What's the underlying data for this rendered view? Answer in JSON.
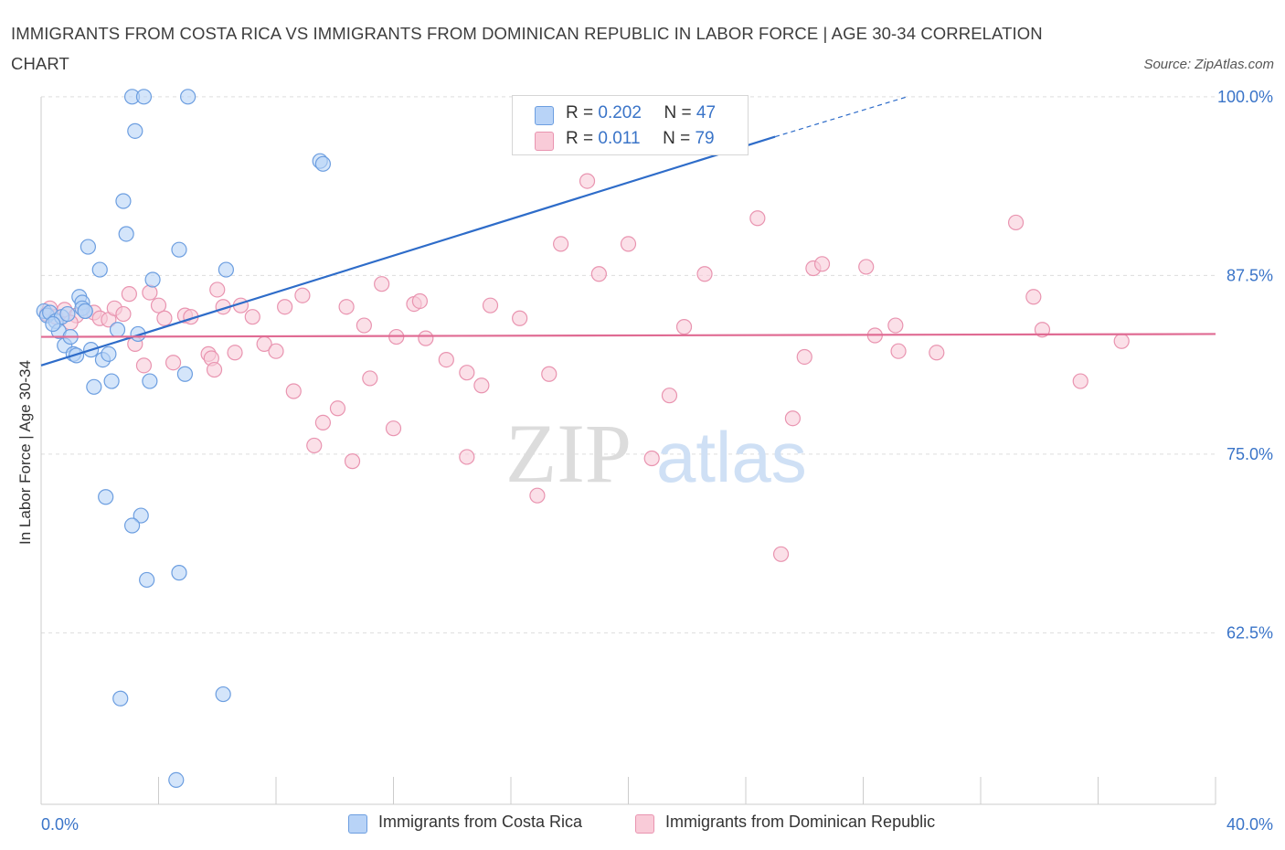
{
  "title": "IMMIGRANTS FROM COSTA RICA VS IMMIGRANTS FROM DOMINICAN REPUBLIC IN LABOR FORCE | AGE 30-34 CORRELATION CHART",
  "source": "Source: ZipAtlas.com",
  "watermark": {
    "zip": "ZIP",
    "atlas": "atlas"
  },
  "legend_top": [
    {
      "r_label": "R =",
      "r_value": "0.202",
      "n_label": "N =",
      "n_value": "47"
    },
    {
      "r_label": "R =",
      "r_value": "0.011",
      "n_label": "N =",
      "n_value": "79"
    }
  ],
  "legend_bottom": [
    "Immigrants from Costa Rica",
    "Immigrants from Dominican Republic"
  ],
  "colors": {
    "blue_fill": "#b8d3f7",
    "blue_stroke": "#6c9ee0",
    "blue_line": "#2e6cc9",
    "pink_fill": "#f9cbd8",
    "pink_stroke": "#e994b0",
    "pink_line": "#e06b93",
    "tick_label": "#3a74c8",
    "grid": "#dddddd"
  },
  "chart_data": {
    "type": "scatter",
    "ylabel": "In Labor Force | Age 30-34",
    "xlim": [
      0,
      40
    ],
    "ylim": [
      50.5,
      100.5
    ],
    "x_tick_labels": [
      {
        "value": 0,
        "label": "0.0%"
      },
      {
        "value": 40,
        "label": "40.0%"
      }
    ],
    "y_tick_labels": [
      {
        "value": 62.5,
        "label": "62.5%"
      },
      {
        "value": 75.0,
        "label": "75.0%"
      },
      {
        "value": 87.5,
        "label": "87.5%"
      },
      {
        "value": 100.0,
        "label": "100.0%"
      }
    ],
    "y_grid": [
      62.5,
      75.0,
      87.5,
      100.0
    ],
    "grid": true,
    "series": [
      {
        "name": "Immigrants from Costa Rica",
        "color": "blue",
        "trend": {
          "x0": 0,
          "y0": 81.2,
          "x1": 25.0,
          "y1": 97.2,
          "dash_to_x": 29.5,
          "dash_to_y": 100.0
        },
        "points": [
          [
            0.1,
            85.0
          ],
          [
            0.2,
            84.7
          ],
          [
            0.3,
            84.9
          ],
          [
            0.5,
            84.3
          ],
          [
            0.6,
            83.6
          ],
          [
            0.7,
            84.6
          ],
          [
            0.8,
            82.6
          ],
          [
            1.0,
            83.2
          ],
          [
            1.1,
            82.0
          ],
          [
            1.3,
            86.0
          ],
          [
            1.4,
            85.6
          ],
          [
            1.4,
            85.2
          ],
          [
            1.5,
            85.0
          ],
          [
            1.6,
            89.5
          ],
          [
            1.7,
            82.3
          ],
          [
            1.8,
            79.7
          ],
          [
            2.0,
            87.9
          ],
          [
            2.1,
            81.6
          ],
          [
            2.3,
            82.0
          ],
          [
            2.4,
            80.1
          ],
          [
            2.6,
            83.7
          ],
          [
            2.8,
            92.7
          ],
          [
            2.9,
            90.4
          ],
          [
            3.1,
            100.0
          ],
          [
            3.2,
            97.6
          ],
          [
            3.3,
            83.4
          ],
          [
            3.5,
            100.0
          ],
          [
            3.7,
            80.1
          ],
          [
            3.8,
            87.2
          ],
          [
            4.7,
            89.3
          ],
          [
            5.0,
            100.0
          ],
          [
            6.3,
            87.9
          ],
          [
            9.5,
            95.5
          ],
          [
            9.6,
            95.3
          ],
          [
            2.2,
            72.0
          ],
          [
            3.4,
            70.7
          ],
          [
            3.1,
            70.0
          ],
          [
            3.6,
            66.2
          ],
          [
            4.7,
            66.7
          ],
          [
            2.7,
            57.9
          ],
          [
            6.2,
            58.2
          ],
          [
            4.6,
            52.2
          ],
          [
            4.9,
            80.6
          ],
          [
            1.2,
            81.9
          ],
          [
            0.9,
            84.8
          ],
          [
            0.4,
            84.1
          ],
          [
            1.5,
            85.0
          ]
        ]
      },
      {
        "name": "Immigrants from Dominican Republic",
        "color": "pink",
        "trend": {
          "x0": 0,
          "y0": 83.2,
          "x1": 40,
          "y1": 83.4
        },
        "points": [
          [
            0.2,
            84.8
          ],
          [
            0.3,
            85.2
          ],
          [
            0.5,
            84.6
          ],
          [
            0.8,
            85.1
          ],
          [
            1.2,
            84.7
          ],
          [
            1.5,
            85.0
          ],
          [
            1.8,
            84.9
          ],
          [
            2.0,
            84.5
          ],
          [
            2.3,
            84.4
          ],
          [
            2.5,
            85.2
          ],
          [
            2.8,
            84.8
          ],
          [
            3.0,
            86.2
          ],
          [
            3.2,
            82.7
          ],
          [
            3.5,
            81.2
          ],
          [
            3.7,
            86.3
          ],
          [
            4.0,
            85.4
          ],
          [
            4.2,
            84.5
          ],
          [
            4.5,
            81.4
          ],
          [
            4.9,
            84.7
          ],
          [
            5.1,
            84.6
          ],
          [
            5.7,
            82.0
          ],
          [
            5.8,
            81.7
          ],
          [
            5.9,
            80.9
          ],
          [
            6.0,
            86.5
          ],
          [
            6.2,
            85.3
          ],
          [
            6.6,
            82.1
          ],
          [
            6.8,
            85.4
          ],
          [
            7.2,
            84.6
          ],
          [
            7.6,
            82.7
          ],
          [
            8.0,
            82.2
          ],
          [
            8.3,
            85.3
          ],
          [
            8.6,
            79.4
          ],
          [
            8.9,
            86.1
          ],
          [
            9.3,
            75.6
          ],
          [
            9.6,
            77.2
          ],
          [
            10.1,
            78.2
          ],
          [
            10.4,
            85.3
          ],
          [
            10.6,
            74.5
          ],
          [
            11.0,
            84.0
          ],
          [
            11.2,
            80.3
          ],
          [
            11.6,
            86.9
          ],
          [
            12.0,
            76.8
          ],
          [
            12.1,
            83.2
          ],
          [
            12.7,
            85.5
          ],
          [
            12.9,
            85.7
          ],
          [
            13.1,
            83.1
          ],
          [
            13.8,
            81.6
          ],
          [
            14.5,
            80.7
          ],
          [
            14.5,
            74.8
          ],
          [
            15.0,
            79.8
          ],
          [
            15.3,
            85.4
          ],
          [
            16.3,
            84.5
          ],
          [
            16.9,
            72.1
          ],
          [
            17.3,
            80.6
          ],
          [
            17.7,
            89.7
          ],
          [
            18.6,
            94.1
          ],
          [
            19.0,
            87.6
          ],
          [
            20.0,
            89.7
          ],
          [
            20.8,
            74.7
          ],
          [
            21.4,
            79.1
          ],
          [
            21.9,
            83.9
          ],
          [
            22.6,
            87.6
          ],
          [
            24.4,
            91.5
          ],
          [
            25.2,
            68.0
          ],
          [
            25.6,
            77.5
          ],
          [
            26.3,
            88.0
          ],
          [
            26.6,
            88.3
          ],
          [
            28.1,
            88.1
          ],
          [
            28.4,
            83.3
          ],
          [
            29.1,
            84.0
          ],
          [
            29.2,
            82.2
          ],
          [
            30.5,
            82.1
          ],
          [
            33.2,
            91.2
          ],
          [
            33.8,
            86.0
          ],
          [
            34.1,
            83.7
          ],
          [
            35.4,
            80.1
          ],
          [
            36.8,
            82.9
          ],
          [
            26.0,
            81.8
          ],
          [
            1.0,
            84.2
          ]
        ]
      }
    ]
  }
}
